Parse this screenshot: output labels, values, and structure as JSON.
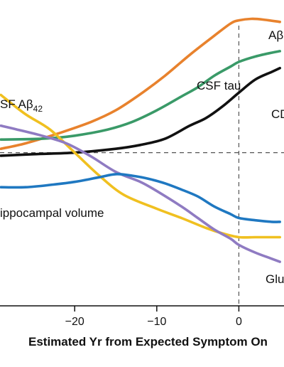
{
  "chart_data": {
    "type": "line",
    "title": "",
    "xlabel": "Estimated Yr from Expected Symptom On",
    "ylabel": "",
    "xlim": [
      -29.1,
      5.5
    ],
    "ylim": [
      -1.9,
      1.8
    ],
    "reference_lines": {
      "x": 0,
      "y": 0,
      "style": "dashed"
    },
    "x_ticks": [
      {
        "value": -20,
        "label": "−20"
      },
      {
        "value": -10,
        "label": "−10"
      },
      {
        "value": 0,
        "label": "0"
      }
    ],
    "series": [
      {
        "name": "Aβ",
        "color": "#e8822d",
        "x": [
          -29,
          -26,
          -22,
          -18,
          -15,
          -12,
          -9,
          -6,
          -3,
          -1,
          0,
          1.5,
          3,
          5
        ],
        "y": [
          0.05,
          0.12,
          0.25,
          0.4,
          0.55,
          0.76,
          1.0,
          1.27,
          1.52,
          1.68,
          1.72,
          1.74,
          1.73,
          1.7
        ]
      },
      {
        "name": "CSF tau",
        "color": "#3a9a68",
        "x": [
          -29,
          -24,
          -20,
          -16,
          -13,
          -10,
          -7,
          -5,
          -3,
          -1,
          0,
          2,
          4,
          5
        ],
        "y": [
          0.17,
          0.18,
          0.22,
          0.3,
          0.4,
          0.55,
          0.73,
          0.85,
          1.0,
          1.12,
          1.18,
          1.25,
          1.3,
          1.32
        ]
      },
      {
        "name": "CD",
        "color": "#111111",
        "x": [
          -29,
          -25,
          -20,
          -15,
          -12,
          -9,
          -6,
          -4,
          -2,
          0,
          2,
          4,
          5
        ],
        "y": [
          -0.04,
          -0.02,
          0.0,
          0.05,
          0.1,
          0.18,
          0.35,
          0.45,
          0.6,
          0.78,
          0.95,
          1.05,
          1.1
        ]
      },
      {
        "name": "SF Aβ",
        "subscript": "42",
        "color": "#f0c020",
        "x": [
          -29,
          -26,
          -23,
          -20,
          -17,
          -14,
          -10,
          -7,
          -4,
          -2,
          0,
          2,
          4,
          5
        ],
        "y": [
          0.75,
          0.5,
          0.3,
          0.0,
          -0.3,
          -0.55,
          -0.73,
          -0.85,
          -0.98,
          -1.05,
          -1.1,
          -1.1,
          -1.1,
          -1.1
        ]
      },
      {
        "name": "",
        "color": "#8f7bc2",
        "x": [
          -29,
          -27,
          -24,
          -21,
          -18,
          -15,
          -12,
          -10,
          -7,
          -5,
          -3,
          -1,
          0,
          2,
          4,
          5
        ],
        "y": [
          0.35,
          0.3,
          0.22,
          0.12,
          -0.05,
          -0.25,
          -0.38,
          -0.5,
          -0.7,
          -0.85,
          -1.0,
          -1.12,
          -1.2,
          -1.3,
          -1.38,
          -1.42
        ]
      },
      {
        "name": "ippocampal volume",
        "color": "#1f78c1",
        "x": [
          -29,
          -26,
          -23,
          -20,
          -17,
          -15,
          -13,
          -11,
          -9,
          -7,
          -5,
          -3,
          -1,
          0,
          2,
          4,
          5
        ],
        "y": [
          -0.45,
          -0.45,
          -0.42,
          -0.38,
          -0.32,
          -0.28,
          -0.3,
          -0.34,
          -0.4,
          -0.48,
          -0.57,
          -0.7,
          -0.8,
          -0.85,
          -0.88,
          -0.9,
          -0.9
        ]
      },
      {
        "name": "Glu me",
        "color": "",
        "x": [],
        "y": []
      }
    ]
  }
}
